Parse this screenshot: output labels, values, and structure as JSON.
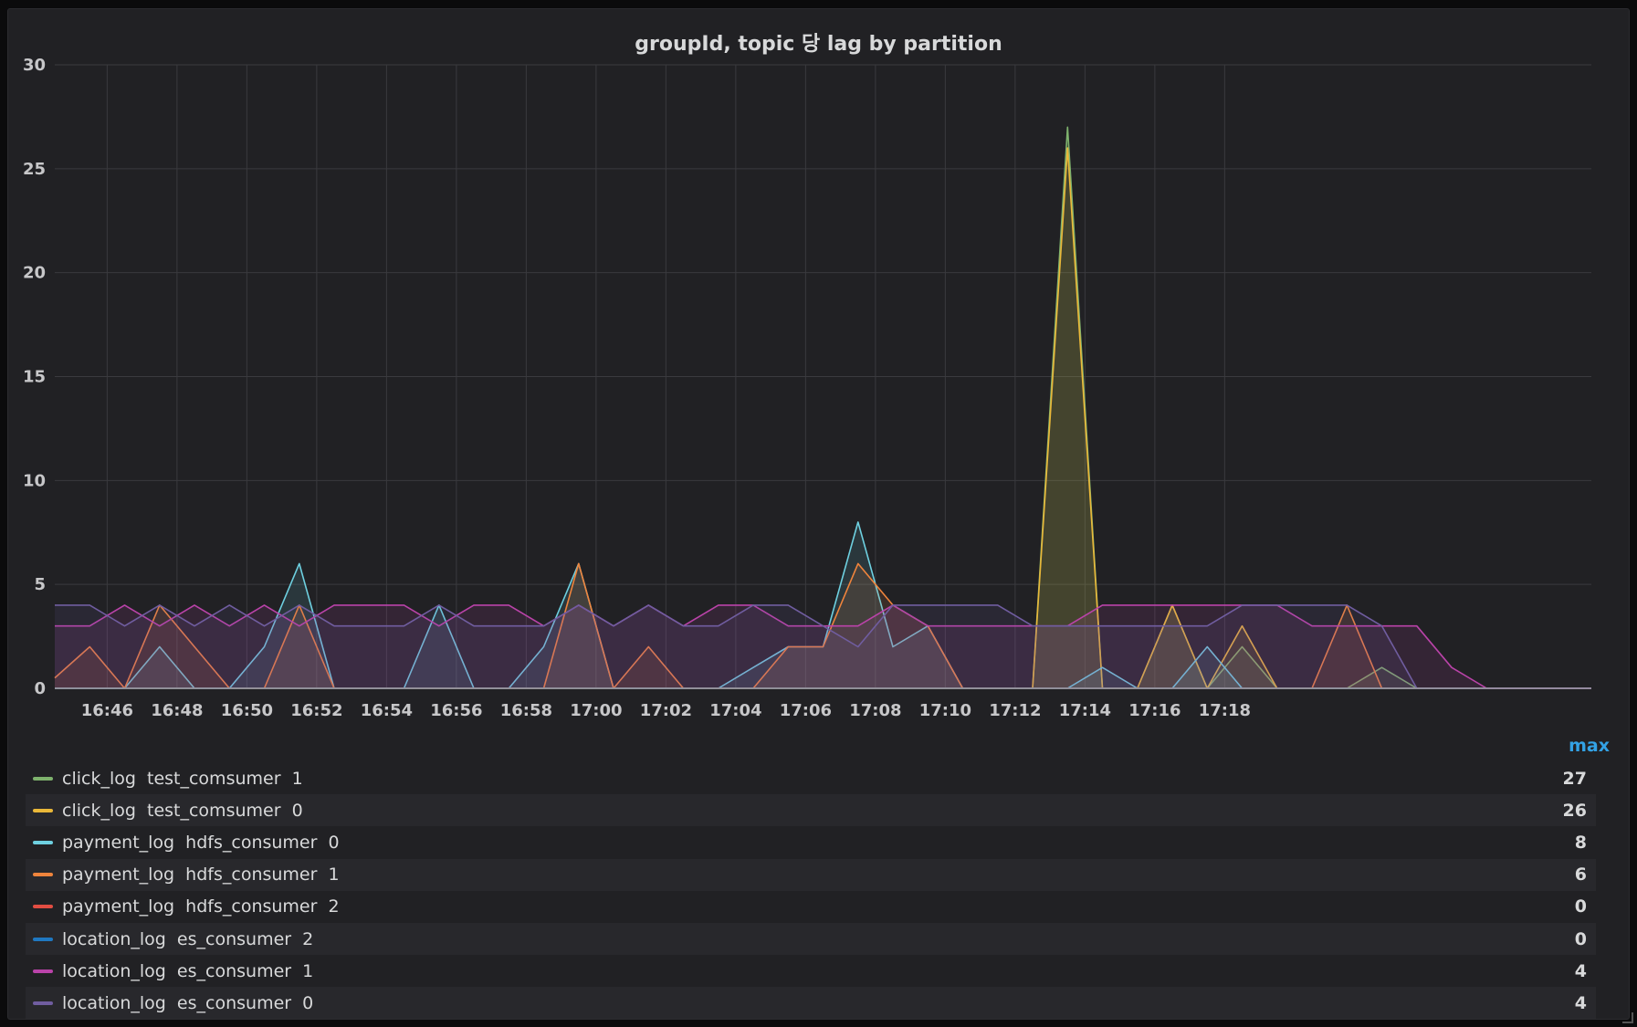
{
  "panel": {
    "title": "groupId, topic 당 lag by partition",
    "legend_header": "max"
  },
  "chart_data": {
    "type": "area",
    "x_start": "16:44:30",
    "x_step_minutes": 1,
    "x_ticks": [
      "16:46",
      "16:48",
      "16:50",
      "16:52",
      "16:54",
      "16:56",
      "16:58",
      "17:00",
      "17:02",
      "17:04",
      "17:06",
      "17:08",
      "17:10",
      "17:12",
      "17:14",
      "17:16",
      "17:18"
    ],
    "y_ticks": [
      0,
      5,
      10,
      15,
      20,
      25,
      30
    ],
    "ylim": [
      0,
      30
    ],
    "grid": true,
    "legend_position": "bottom",
    "series": [
      {
        "name": "click_log  test_comsumer  1",
        "color": "#7eb26d",
        "max": "27",
        "values": [
          0,
          0,
          0,
          0,
          0,
          0,
          0,
          0,
          0,
          0,
          0,
          0,
          0,
          0,
          0,
          0,
          0,
          0,
          0,
          0,
          0,
          0,
          0,
          0,
          0,
          0,
          0,
          0,
          0,
          27,
          0,
          0,
          4,
          0,
          2,
          0,
          0,
          0,
          1,
          0,
          0,
          0,
          0,
          0,
          0
        ]
      },
      {
        "name": "click_log  test_comsumer  0",
        "color": "#eab839",
        "max": "26",
        "values": [
          0,
          0,
          0,
          0,
          0,
          0,
          0,
          0,
          0,
          0,
          0,
          0,
          0,
          0,
          0,
          0,
          0,
          0,
          0,
          0,
          0,
          0,
          0,
          0,
          0,
          0,
          0,
          0,
          0,
          26,
          0,
          0,
          4,
          0,
          3,
          0,
          0,
          0,
          0,
          0,
          0,
          0,
          0,
          0,
          0
        ]
      },
      {
        "name": "payment_log  hdfs_consumer  0",
        "color": "#6ed0e0",
        "max": "8",
        "values": [
          0,
          0,
          0,
          2,
          0,
          0,
          2,
          6,
          0,
          0,
          0,
          4,
          0,
          0,
          2,
          6,
          0,
          0,
          0,
          0,
          1,
          2,
          2,
          8,
          2,
          3,
          0,
          0,
          0,
          0,
          1,
          0,
          0,
          2,
          0,
          0,
          0,
          0,
          0,
          0,
          0,
          0,
          0,
          0,
          0
        ]
      },
      {
        "name": "payment_log  hdfs_consumer  1",
        "color": "#ef843c",
        "max": "6",
        "values": [
          0.5,
          2,
          0,
          4,
          2,
          0,
          0,
          4,
          0,
          0,
          0,
          0,
          0,
          0,
          0,
          6,
          0,
          2,
          0,
          0,
          0,
          2,
          2,
          6,
          4,
          3,
          0,
          0,
          0,
          0,
          0,
          0,
          0,
          0,
          0,
          0,
          0,
          4,
          0,
          0,
          0,
          0,
          0,
          0,
          0
        ]
      },
      {
        "name": "payment_log  hdfs_consumer  2",
        "color": "#e24d42",
        "max": "0",
        "values": [
          0,
          0,
          0,
          0,
          0,
          0,
          0,
          0,
          0,
          0,
          0,
          0,
          0,
          0,
          0,
          0,
          0,
          0,
          0,
          0,
          0,
          0,
          0,
          0,
          0,
          0,
          0,
          0,
          0,
          0,
          0,
          0,
          0,
          0,
          0,
          0,
          0,
          0,
          0,
          0,
          0,
          0,
          0,
          0,
          0
        ]
      },
      {
        "name": "location_log  es_consumer  2",
        "color": "#1f78c1",
        "max": "0",
        "values": [
          0,
          0,
          0,
          0,
          0,
          0,
          0,
          0,
          0,
          0,
          0,
          0,
          0,
          0,
          0,
          0,
          0,
          0,
          0,
          0,
          0,
          0,
          0,
          0,
          0,
          0,
          0,
          0,
          0,
          0,
          0,
          0,
          0,
          0,
          0,
          0,
          0,
          0,
          0,
          0,
          0,
          0,
          0,
          0,
          0
        ]
      },
      {
        "name": "location_log  es_consumer  1",
        "color": "#ba43a9",
        "max": "4",
        "values": [
          3,
          3,
          4,
          3,
          4,
          3,
          4,
          3,
          4,
          4,
          4,
          3,
          4,
          4,
          3,
          4,
          3,
          4,
          3,
          4,
          4,
          3,
          3,
          3,
          4,
          3,
          3,
          3,
          3,
          3,
          4,
          4,
          4,
          4,
          4,
          4,
          3,
          3,
          3,
          3,
          1,
          0,
          0,
          0,
          0
        ]
      },
      {
        "name": "location_log  es_consumer  0",
        "color": "#705da0",
        "max": "4",
        "values": [
          4,
          4,
          3,
          4,
          3,
          4,
          3,
          4,
          3,
          3,
          3,
          4,
          3,
          3,
          3,
          4,
          3,
          4,
          3,
          3,
          4,
          4,
          3,
          2,
          4,
          4,
          4,
          4,
          3,
          3,
          3,
          3,
          3,
          3,
          4,
          4,
          4,
          4,
          3,
          0,
          0,
          0,
          0,
          0,
          0
        ]
      }
    ]
  }
}
